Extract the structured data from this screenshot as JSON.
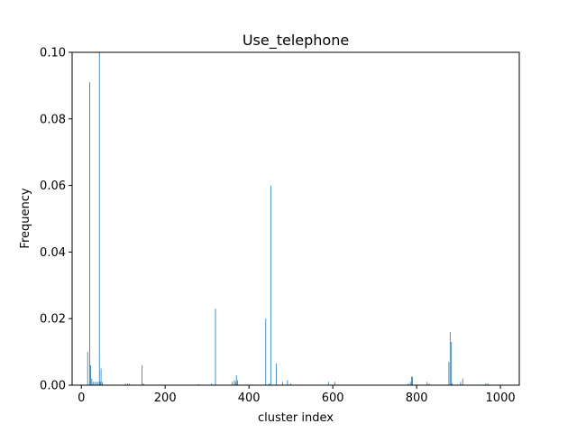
{
  "chart_data": {
    "type": "bar",
    "title": "Use_telephone",
    "xlabel": "cluster index",
    "ylabel": "Frequency",
    "xlim": [
      -22,
      1045
    ],
    "ylim": [
      0,
      0.1
    ],
    "grid": false,
    "bar_color": "#1f77b4",
    "xticks": [
      0,
      200,
      400,
      600,
      800,
      1000
    ],
    "yticks": [
      0.0,
      0.02,
      0.04,
      0.06,
      0.08,
      0.1
    ],
    "xtick_labels": [
      "0",
      "200",
      "400",
      "600",
      "800",
      "1000"
    ],
    "ytick_labels": [
      "0.00",
      "0.02",
      "0.04",
      "0.06",
      "0.08",
      "0.10"
    ],
    "x": [
      15,
      20,
      22,
      25,
      28,
      32,
      36,
      40,
      43,
      45,
      47,
      50,
      105,
      110,
      115,
      145,
      148,
      280,
      310,
      320,
      360,
      365,
      368,
      370,
      373,
      440,
      448,
      452,
      465,
      480,
      492,
      500,
      590,
      605,
      780,
      785,
      788,
      790,
      825,
      830,
      877,
      880,
      883,
      885,
      905,
      910,
      965,
      970
    ],
    "values": [
      0.01,
      0.091,
      0.006,
      0.002,
      0.001,
      0.001,
      0.001,
      0.001,
      0.1,
      0.001,
      0.005,
      0.001,
      0.0005,
      0.0005,
      0.0005,
      0.006,
      0.0005,
      0.0003,
      0.0005,
      0.023,
      0.001,
      0.0015,
      0.001,
      0.003,
      0.0015,
      0.02,
      0.0005,
      0.06,
      0.0065,
      0.001,
      0.0015,
      0.0005,
      0.001,
      0.001,
      0.0005,
      0.001,
      0.0025,
      0.0025,
      0.001,
      0.0005,
      0.007,
      0.016,
      0.013,
      0.0005,
      0.001,
      0.002,
      0.0005,
      0.0005
    ]
  }
}
